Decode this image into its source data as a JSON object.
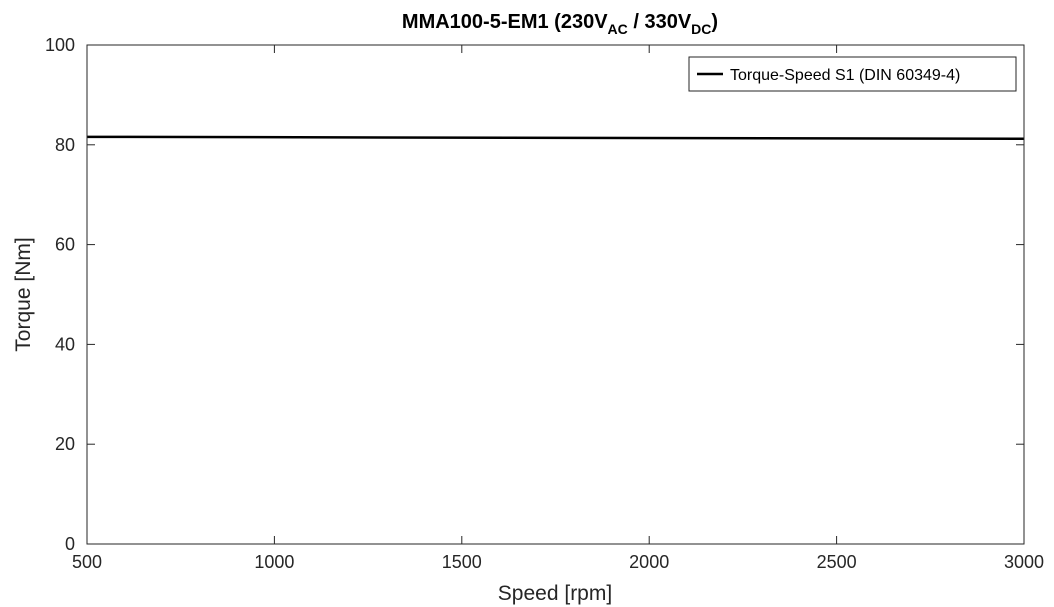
{
  "chart_data": {
    "type": "line",
    "title": {
      "base": "MMA100-5-EM1 (230V",
      "sub1": "AC",
      "mid": " / 330V",
      "sub2": "DC",
      "end": ")"
    },
    "xlabel": "Speed [rpm]",
    "ylabel": "Torque [Nm]",
    "xlim": [
      500,
      3000
    ],
    "ylim": [
      0,
      100
    ],
    "xticks": [
      500,
      1000,
      1500,
      2000,
      2500,
      3000
    ],
    "yticks": [
      0,
      20,
      40,
      60,
      80,
      100
    ],
    "grid": false,
    "legend_position": "top-right",
    "series": [
      {
        "name": "Torque-Speed S1 (DIN 60349-4)",
        "color": "#000000",
        "x": [
          500,
          3000
        ],
        "y": [
          81.6,
          81.2
        ]
      }
    ]
  }
}
